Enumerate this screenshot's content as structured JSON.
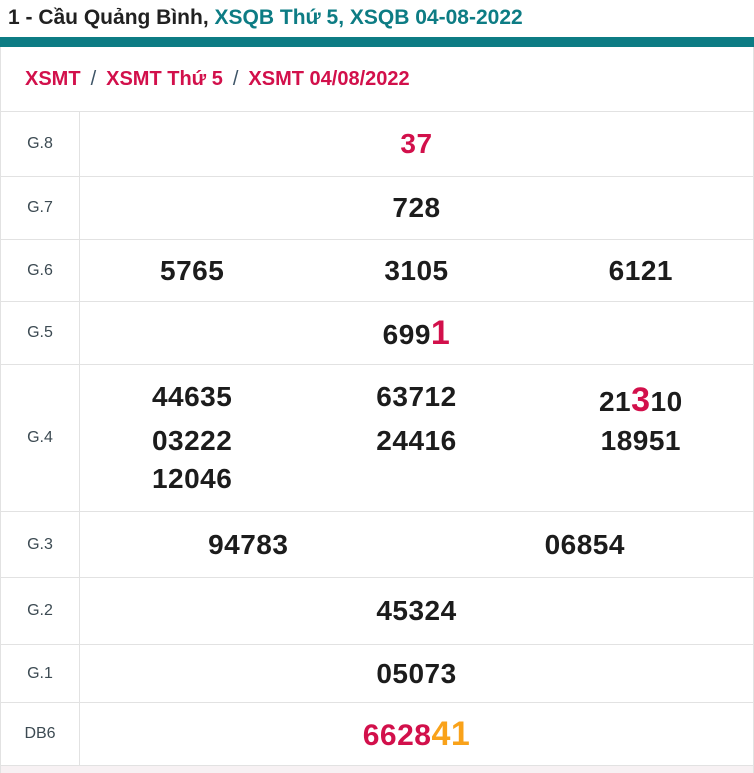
{
  "colors": {
    "teal": "#0d7c84",
    "red": "#d2104b",
    "orange": "#f9a21a"
  },
  "title": {
    "prefix": "1 - Cầu Quảng Bình,",
    "highlight": "XSQB Thứ 5, XSQB 04-08-2022"
  },
  "breadcrumb": {
    "separator": "/",
    "items": [
      "XSMT",
      "XSMT Thứ 5",
      "XSMT 04/08/2022"
    ]
  },
  "table": {
    "rows": {
      "g8": {
        "label": "G.8",
        "value": "37"
      },
      "g7": {
        "label": "G.7",
        "value": "728"
      },
      "g6": {
        "label": "G.6",
        "v1": "5765",
        "v2": "3105",
        "v3": "6121"
      },
      "g5": {
        "label": "G.5",
        "pre": "699",
        "highlight": "1"
      },
      "g4": {
        "label": "G.4",
        "r1c1": "44635",
        "r1c2": "63712",
        "r1c3_pre": "21",
        "r1c3_highlight": "3",
        "r1c3_post": "10",
        "r2c1": "03222",
        "r2c2": "24416",
        "r2c3": "18951",
        "r3c1": "12046"
      },
      "g3": {
        "label": "G.3",
        "v1": "94783",
        "v2": "06854"
      },
      "g2": {
        "label": "G.2",
        "value": "45324"
      },
      "g1": {
        "label": "G.1",
        "value": "05073"
      },
      "db6": {
        "label": "DB6",
        "main": "6628",
        "highlight": "41"
      }
    }
  }
}
